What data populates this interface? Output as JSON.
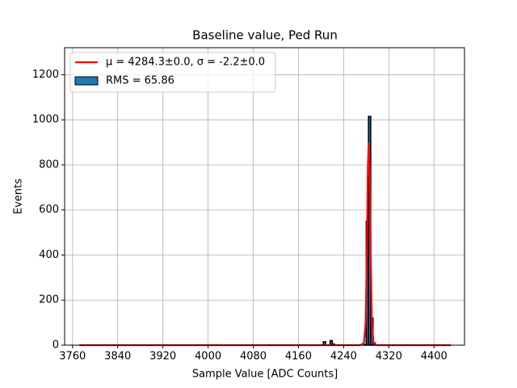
{
  "chart_data": {
    "type": "histogram",
    "title": "Baseline value, Ped Run",
    "x_label": "Sample Value [ADC Counts]",
    "y_label": "Events",
    "xlim": [
      3746,
      4454
    ],
    "ylim": [
      0,
      1320
    ],
    "xticks": [
      3760,
      3840,
      3920,
      4000,
      4080,
      4160,
      4240,
      4320,
      4400
    ],
    "yticks": [
      0,
      200,
      400,
      600,
      800,
      1000,
      1200
    ],
    "grid": true,
    "legend_position": "upper left",
    "layers": [
      {
        "type": "line",
        "name": "μ = 4284.3±0.0, σ = -2.2±0.0",
        "color": "#ff0000",
        "x": [
          3772,
          4270,
          4276,
          4279,
          4281,
          4283,
          4284.3,
          4286,
          4288,
          4290,
          4293,
          4298,
          4430
        ],
        "values": [
          0,
          0,
          10,
          100,
          400,
          800,
          895,
          800,
          400,
          100,
          10,
          0,
          0
        ]
      },
      {
        "type": "histogram",
        "name": "RMS = 65.86",
        "color": "#1f77b4",
        "edgecolor": "#000000",
        "bins": [
          4200,
          4204,
          4208,
          4212,
          4216,
          4220,
          4224,
          4228,
          4232,
          4236,
          4240,
          4244,
          4248,
          4252,
          4256,
          4260,
          4264,
          4268,
          4272,
          4276,
          4280,
          4284,
          4288,
          4292,
          4296,
          4300,
          4304
        ],
        "values": [
          0,
          15,
          0,
          0,
          20,
          5,
          0,
          0,
          0,
          0,
          0,
          0,
          0,
          0,
          0,
          0,
          0,
          0,
          0,
          3,
          550,
          1015,
          120,
          10,
          0,
          0
        ]
      }
    ]
  }
}
